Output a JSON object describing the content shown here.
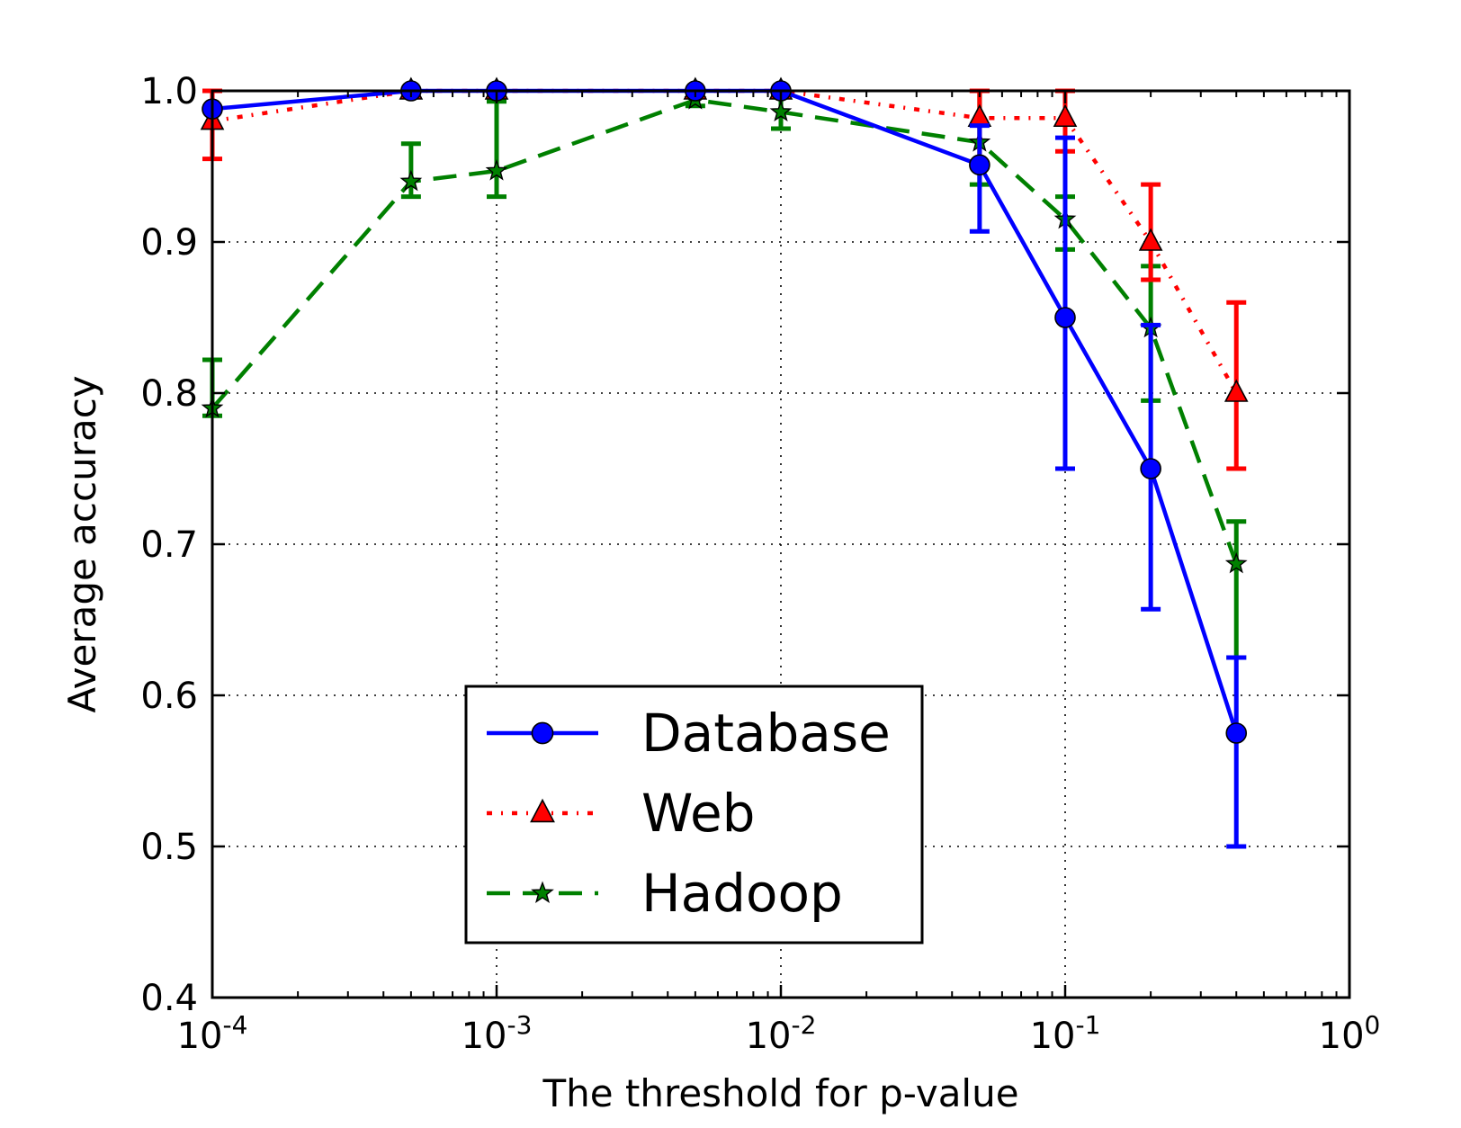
{
  "chart_data": {
    "type": "line",
    "title": "",
    "xlabel": "The threshold for p-value",
    "ylabel": "Average accuracy",
    "xscale": "log",
    "xlim": [
      0.0001,
      1
    ],
    "ylim": [
      0.4,
      1.0
    ],
    "grid": true,
    "legend_position": "lower-center",
    "x_ticks": [
      {
        "value": 0.0001,
        "base": "10",
        "exp": "-4"
      },
      {
        "value": 0.001,
        "base": "10",
        "exp": "-3"
      },
      {
        "value": 0.01,
        "base": "10",
        "exp": "-2"
      },
      {
        "value": 0.1,
        "base": "10",
        "exp": "-1"
      },
      {
        "value": 1,
        "base": "10",
        "exp": "0"
      }
    ],
    "y_ticks": [
      {
        "value": 0.4,
        "label": "0.4"
      },
      {
        "value": 0.5,
        "label": "0.5"
      },
      {
        "value": 0.6,
        "label": "0.6"
      },
      {
        "value": 0.7,
        "label": "0.7"
      },
      {
        "value": 0.8,
        "label": "0.8"
      },
      {
        "value": 0.9,
        "label": "0.9"
      },
      {
        "value": 1.0,
        "label": "1.0"
      }
    ],
    "series": [
      {
        "name": "Hadoop",
        "color": "#008000",
        "linestyle": "dashed",
        "marker": "star",
        "x": [
          0.0001,
          0.0005,
          0.001,
          0.005,
          0.01,
          0.05,
          0.1,
          0.2,
          0.4
        ],
        "y": [
          0.79,
          0.94,
          0.947,
          0.994,
          0.986,
          0.966,
          0.915,
          0.843,
          0.687
        ],
        "err_low": [
          0.785,
          0.93,
          0.93,
          0.99,
          0.975,
          0.938,
          0.895,
          0.795,
          0.625
        ],
        "err_high": [
          0.822,
          0.965,
          0.993,
          1.0,
          0.997,
          1.0,
          0.93,
          0.884,
          0.715
        ]
      },
      {
        "name": "Web",
        "color": "#ff0000",
        "linestyle": "dashdot",
        "marker": "triangle",
        "x": [
          0.0001,
          0.0005,
          0.001,
          0.005,
          0.01,
          0.05,
          0.1,
          0.2,
          0.4
        ],
        "y": [
          0.98,
          1.0,
          1.0,
          1.0,
          1.0,
          0.982,
          0.982,
          0.9,
          0.8
        ],
        "err_low": [
          0.955,
          1.0,
          1.0,
          1.0,
          1.0,
          0.952,
          0.96,
          0.875,
          0.75
        ],
        "err_high": [
          1.0,
          1.0,
          1.0,
          1.0,
          1.0,
          1.0,
          1.0,
          0.938,
          0.86
        ]
      },
      {
        "name": "Database",
        "color": "#0000ff",
        "linestyle": "solid",
        "marker": "circle",
        "x": [
          0.0001,
          0.0005,
          0.001,
          0.005,
          0.01,
          0.05,
          0.1,
          0.2,
          0.4
        ],
        "y": [
          0.988,
          1.0,
          1.0,
          1.0,
          1.0,
          0.951,
          0.85,
          0.75,
          0.575
        ],
        "err_low": [
          0.988,
          1.0,
          1.0,
          1.0,
          1.0,
          0.907,
          0.75,
          0.657,
          0.5
        ],
        "err_high": [
          0.988,
          1.0,
          1.0,
          1.0,
          1.0,
          0.977,
          0.969,
          0.845,
          0.625
        ]
      }
    ],
    "legend_order": [
      "Database",
      "Web",
      "Hadoop"
    ]
  }
}
